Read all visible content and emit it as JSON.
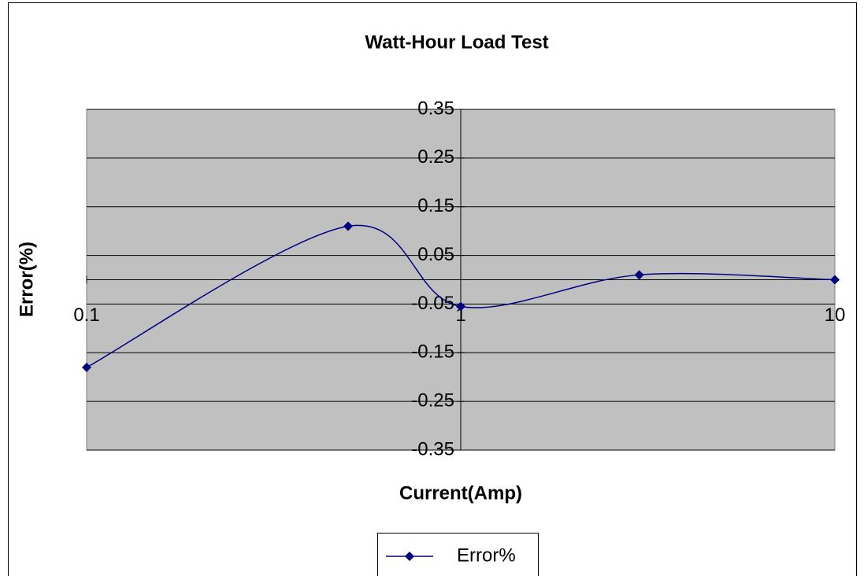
{
  "chart_data": {
    "type": "line",
    "title": "Watt-Hour Load Test",
    "x_label": "Current(Amp)",
    "y_label": "Error(%)",
    "x": [
      0.1,
      0.5,
      1,
      3,
      10
    ],
    "series": [
      {
        "name": "Error%",
        "color": "#000080",
        "values": [
          -0.18,
          0.11,
          -0.055,
          0.01,
          0
        ]
      }
    ],
    "xlim": [
      0.1,
      10
    ],
    "xticks": [
      0.1,
      1,
      10
    ],
    "x_log": true,
    "ylim": [
      -0.35,
      0.35
    ],
    "yticks": [
      0.35,
      0.25,
      0.15,
      0.05,
      -0.05,
      -0.15,
      -0.25,
      -0.35
    ],
    "grid": true,
    "legend": "bottom",
    "smooth": true
  }
}
